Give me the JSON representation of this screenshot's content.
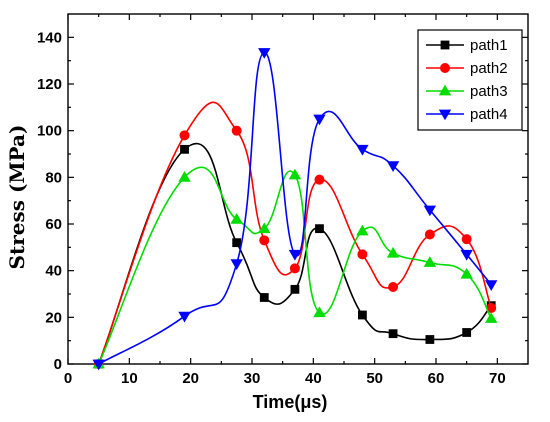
{
  "chart_data": {
    "type": "line",
    "title": "",
    "xlabel": "Time(μs)",
    "ylabel": "Stress (MPa)",
    "xlim": [
      0,
      75
    ],
    "ylim": [
      0,
      150
    ],
    "x_ticks": [
      0,
      10,
      20,
      30,
      40,
      50,
      60,
      70
    ],
    "y_ticks": [
      0,
      20,
      40,
      60,
      80,
      100,
      120,
      140
    ],
    "grid": false,
    "legend_position": "top-right",
    "x": [
      5,
      19,
      27.5,
      32,
      37,
      41,
      48,
      53,
      59,
      65,
      69
    ],
    "series": [
      {
        "name": "path1",
        "color": "#000000",
        "marker": "square",
        "values": [
          0,
          92,
          52,
          28.5,
          32,
          58,
          21,
          13,
          10.5,
          13.5,
          25
        ]
      },
      {
        "name": "path2",
        "color": "#ff0000",
        "marker": "circle",
        "values": [
          0,
          98,
          100,
          53,
          41,
          79,
          47,
          33,
          55.5,
          53.5,
          24
        ]
      },
      {
        "name": "path3",
        "color": "#00dd00",
        "marker": "triangle-up",
        "values": [
          0,
          80,
          62,
          58,
          81,
          22,
          57,
          47.5,
          43.5,
          38.5,
          19.5
        ]
      },
      {
        "name": "path4",
        "color": "#0000ff",
        "marker": "triangle-down",
        "values": [
          0,
          20.5,
          43,
          133.5,
          47,
          105,
          92,
          85,
          66,
          47,
          34
        ]
      }
    ]
  }
}
